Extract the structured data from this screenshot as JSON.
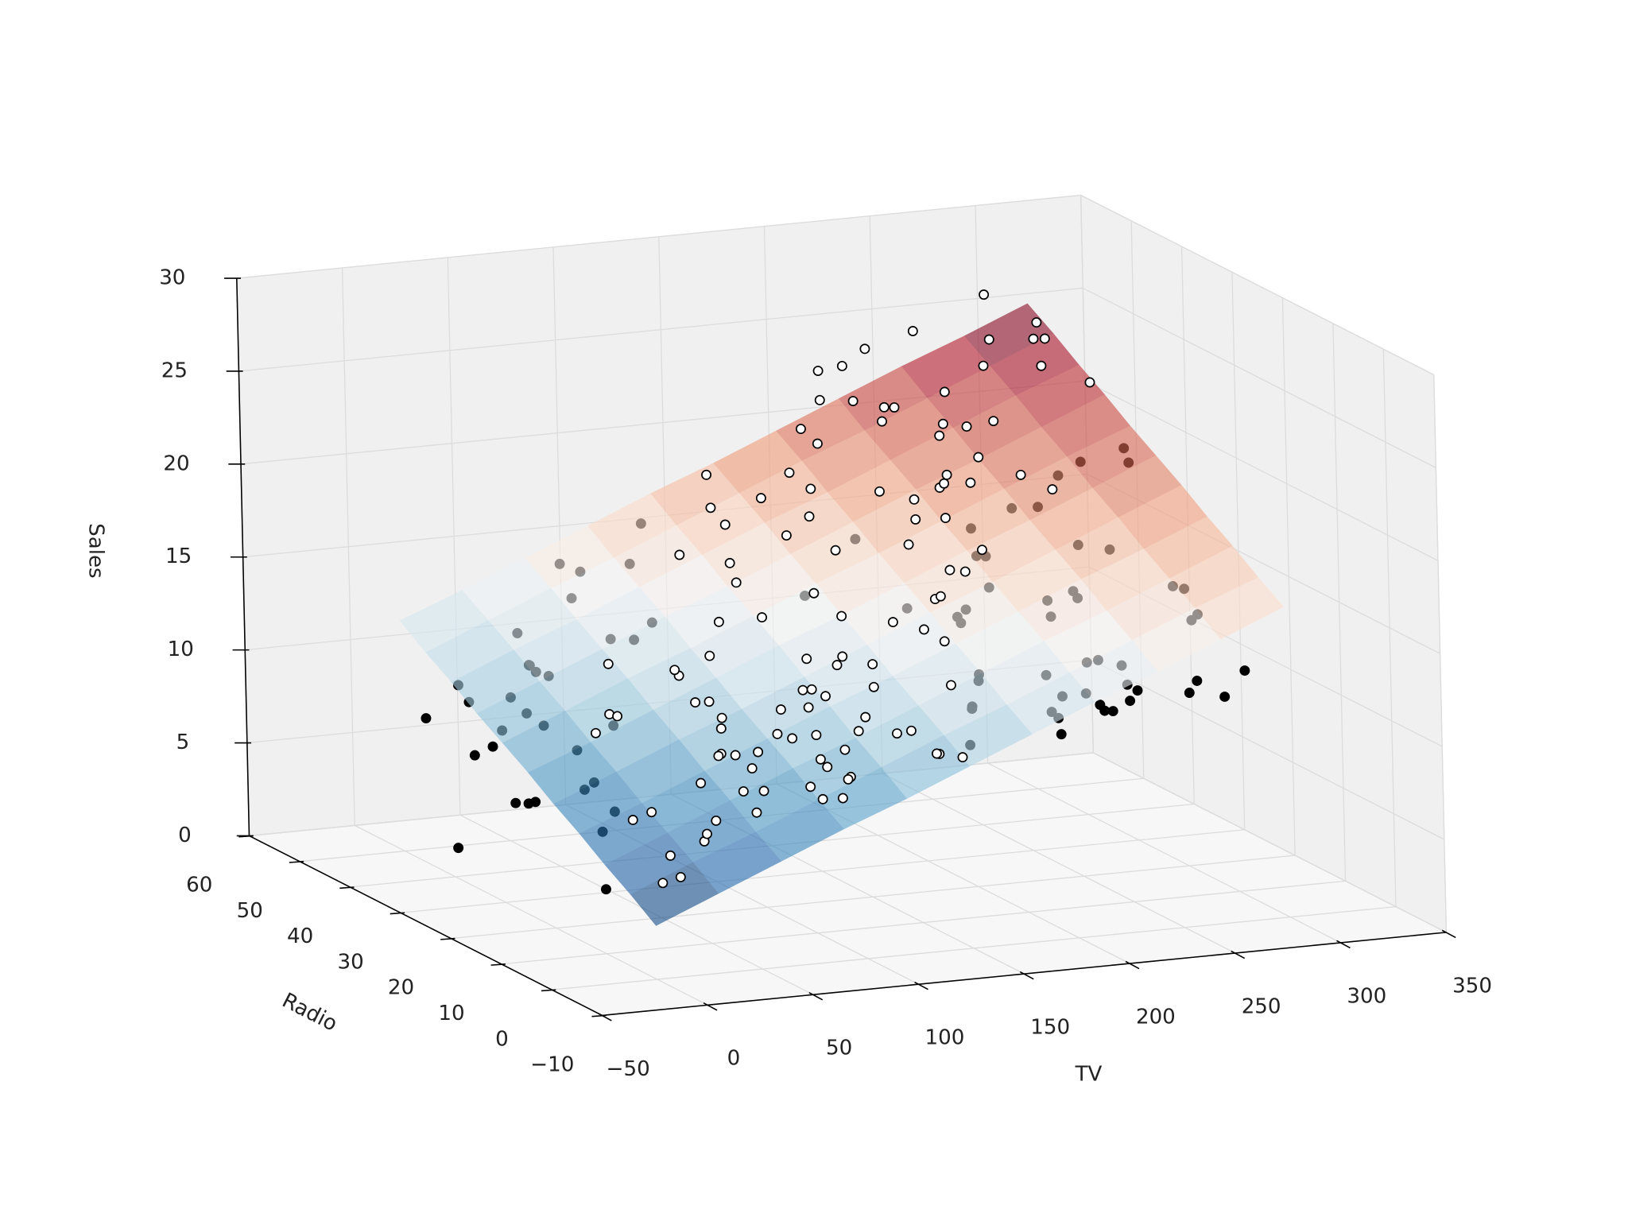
{
  "chart_data": {
    "type": "scatter3d",
    "x_label": "TV",
    "y_label": "Radio",
    "z_label": "Sales",
    "xlim": [
      -50,
      350
    ],
    "ylim": [
      -10,
      60
    ],
    "zlim": [
      0,
      30
    ],
    "xticks": [
      {
        "value": -50,
        "label": "−50"
      },
      0,
      50,
      100,
      150,
      200,
      250,
      300,
      350
    ],
    "yticks": [
      {
        "value": -10,
        "label": "−10"
      },
      0,
      10,
      20,
      30,
      40,
      50,
      60
    ],
    "zticks": [
      0,
      5,
      10,
      15,
      20,
      25,
      30
    ],
    "grid": true,
    "above_color": "#ffffff",
    "below_color": "#000000",
    "edge_color": "#000000",
    "x": [
      230.1,
      44.5,
      17.2,
      151.5,
      180.8,
      8.7,
      57.5,
      120.2,
      8.6,
      199.8,
      66.1,
      214.7,
      23.8,
      97.5,
      204.1,
      195.4,
      67.8,
      281.4,
      69.2,
      147.3,
      218.4,
      237.4,
      13.2,
      228.3,
      62.3,
      262.9,
      142.9,
      240.1,
      248.8,
      70.6,
      292.9,
      112.9,
      97.2,
      265.6,
      95.7,
      290.7,
      266.9,
      74.7,
      43.1,
      228,
      202.5,
      177,
      293.6,
      206.9,
      25.1,
      175.1,
      89.7,
      239.9,
      227.2,
      66.9,
      199.8,
      100.4,
      216.4,
      182.6,
      262.7,
      198.9,
      7.3,
      136.2,
      210.8,
      210.7,
      53.5,
      261.3,
      239.3,
      102.7,
      131.1,
      69,
      31.5,
      139.3,
      237.4,
      216.8,
      199.1,
      109.8,
      26.8,
      129.4,
      213.4,
      16.9,
      27.5,
      120.5,
      5.4,
      116,
      76.4,
      239.8,
      75.3,
      68.4,
      213.5,
      193.2,
      76.3,
      110.7,
      88.3,
      109.8,
      134.3,
      28.6,
      217.7,
      250.9,
      107.4,
      163.3,
      197.6,
      184.9,
      289.7,
      135.2,
      222.4,
      296.4,
      280.2,
      187.9,
      238.2,
      137.9,
      25,
      90.4,
      13.1,
      255.4,
      225.8,
      241.7,
      175.7,
      209.6,
      78.2,
      75.1,
      139.2,
      76.4,
      125.7,
      19.4,
      141.3,
      18.8,
      224,
      123.1,
      229.5,
      87.2,
      7.8,
      80.2,
      220.3,
      59.6,
      0.7,
      265.2,
      8.4,
      219.8,
      36.9,
      48.3,
      25.6,
      273.7,
      43,
      184.9,
      73.4,
      193.7,
      220.5,
      104.6,
      96.2,
      140.3,
      240.1,
      243.2,
      38,
      44.7,
      280.7,
      121,
      197.6,
      171.3,
      187.8,
      4.1,
      93.9,
      149.8,
      11.7,
      131.7,
      172.5,
      85.7,
      188.4,
      163.5,
      117.2,
      234.5,
      17.9,
      206.8,
      215.4,
      284.3,
      50,
      164.5,
      19.6,
      168.4,
      222.4,
      276.9,
      248.4,
      170.2,
      276.7,
      165.6,
      156.6,
      218.5,
      56.2,
      287.6,
      253.8,
      205,
      139.5,
      191.1,
      286,
      18.7,
      39.5,
      75.5,
      17.2,
      166.8,
      149.7,
      38.2,
      94.2,
      177,
      283.6,
      232.1
    ],
    "y": [
      37.8,
      39.3,
      45.9,
      41.3,
      10.8,
      48.9,
      32.8,
      19.6,
      2.1,
      2.6,
      5.8,
      24,
      35.1,
      7.6,
      32.9,
      47.7,
      36.6,
      39.6,
      20.5,
      23.9,
      27.7,
      5.1,
      15.9,
      16.9,
      12.6,
      3.5,
      29.3,
      16.7,
      27.1,
      16,
      28.3,
      17.4,
      1.5,
      20,
      1.4,
      4.1,
      43.8,
      49.4,
      26.7,
      37.7,
      22.3,
      33.4,
      27.7,
      8.4,
      25.7,
      22.5,
      9.9,
      41.5,
      15.8,
      11.7,
      3.1,
      9.6,
      41.7,
      46.2,
      28.8,
      49.4,
      28.1,
      19.2,
      49.6,
      29.5,
      2,
      42.7,
      15.5,
      29.6,
      42.8,
      9.3,
      24.6,
      14.5,
      27.5,
      43.9,
      30.6,
      14.3,
      33,
      5.7,
      24.6,
      43.7,
      1.6,
      28.5,
      29.9,
      7.7,
      26.7,
      4.1,
      20.3,
      44.5,
      43,
      18.4,
      27.5,
      40.6,
      25.5,
      47.8,
      4.9,
      1.5,
      33.5,
      36.5,
      14,
      31.6,
      3.5,
      21,
      42.3,
      41.7,
      4.3,
      36.3,
      10.1,
      17.2,
      34.3,
      46.4,
      11,
      0.3,
      0.4,
      26.9,
      8.2,
      38,
      15.4,
      20.6,
      46.8,
      35,
      14.3,
      0.8,
      36.9,
      16,
      26.8,
      21.7,
      2.4,
      34.6,
      32.3,
      11.8,
      38.9,
      0,
      49,
      12,
      39.6,
      2.9,
      27.2,
      33.5,
      38.6,
      47,
      39,
      28.9,
      25.9,
      43.9,
      17,
      35.4,
      33.2,
      5.7,
      14.8,
      1.9,
      7.3,
      49,
      40.3,
      25.8,
      13.9,
      8.4,
      23.3,
      39.7,
      21.1,
      11.6,
      43.5,
      1.3,
      36.9,
      18.4,
      18.1,
      35.8,
      18.1,
      36.8,
      14.7,
      3.4,
      37.6,
      5.2,
      23.6,
      10.6,
      11.6,
      20.9,
      20.1,
      7.1,
      3.4,
      48.9,
      30.2,
      7.8,
      2.3,
      10,
      2.6,
      5.4,
      5.7,
      43,
      21.3,
      45.1,
      2.1,
      28.7,
      13.9,
      12.1,
      41.1,
      10.8,
      4.1,
      42,
      35.6,
      3.7,
      4.9,
      9.3,
      42,
      8.6
    ],
    "z": [
      22.1,
      10.4,
      9.3,
      18.5,
      12.9,
      7.2,
      11.8,
      13.2,
      4.8,
      10.6,
      8.6,
      17.4,
      9.2,
      9.7,
      19,
      22.4,
      12.5,
      24.4,
      11.3,
      14.6,
      18,
      12.5,
      5.6,
      15.5,
      9.7,
      12,
      15,
      15.9,
      18.9,
      10.5,
      21.4,
      11.9,
      9.6,
      17.4,
      9.5,
      12.8,
      25.4,
      14.7,
      10.1,
      21.5,
      16.6,
      17.1,
      20.7,
      12.9,
      8.5,
      14.9,
      10.6,
      23.2,
      14.8,
      9.7,
      11.4,
      10.7,
      22.6,
      21.2,
      20.2,
      23.7,
      5.5,
      13.2,
      23.8,
      18.4,
      8.1,
      24.2,
      15.7,
      14,
      18,
      9.3,
      9.5,
      13.4,
      18.9,
      22.3,
      18.3,
      12.4,
      8.8,
      11,
      17,
      8.7,
      6.9,
      14.2,
      5.3,
      11,
      11.8,
      12.3,
      11.3,
      13.6,
      21.7,
      15.2,
      12,
      16,
      12.9,
      16.7,
      11.2,
      7.3,
      19.4,
      22.2,
      11.5,
      16.9,
      11.7,
      15.5,
      25.4,
      17.2,
      11.7,
      23.8,
      14.8,
      14.7,
      20.7,
      19.2,
      7.2,
      8.7,
      5.3,
      19.8,
      13.4,
      21.8,
      14.1,
      15.9,
      14.6,
      12.6,
      12.2,
      9.4,
      15.9,
      6.6,
      15.5,
      7,
      11.6,
      15.2,
      19.7,
      10.6,
      6.6,
      8.8,
      24.7,
      9.7,
      1.6,
      12.7,
      5.7,
      19.6,
      10.8,
      11.6,
      9.5,
      20.8,
      9.6,
      20.7,
      10.9,
      19.2,
      20.1,
      10.4,
      11.4,
      10.3,
      13.2,
      25.4,
      10.9,
      10.1,
      16.1,
      11.6,
      16.6,
      19,
      15.6,
      3.2,
      15.3,
      10.1,
      7.3,
      12.9,
      14.4,
      13.3,
      14.9,
      18,
      11.9,
      11.9,
      8,
      12.2,
      17.1,
      15,
      8.4,
      14.5,
      7.6,
      11.7,
      11.5,
      27,
      20.2,
      11.7,
      11.8,
      12.6,
      10.5,
      12.2,
      8.7,
      26.2,
      17.6,
      22.6,
      10.3,
      17.3,
      15.9,
      6.7,
      10.8,
      9.9,
      5.9,
      19.6,
      17.3,
      7.6,
      9.7,
      12.8,
      25.5,
      13.4
    ],
    "surface": {
      "cmap": "RdBu_r",
      "alpha": 0.6,
      "x": [
        0,
        30,
        60,
        90,
        120,
        150,
        180,
        210,
        240,
        270,
        300
      ],
      "y": [
        0,
        5,
        10,
        15,
        20,
        25,
        30,
        35,
        40,
        45,
        50
      ],
      "z": [
        [
          2.9,
          4.3,
          5.7,
          7.1,
          8.4,
          9.8,
          11.2,
          12.6,
          13.9,
          15.3,
          16.7
        ],
        [
          3.9,
          5.3,
          6.6,
          8.0,
          9.4,
          10.8,
          12.1,
          13.5,
          14.9,
          16.3,
          17.6
        ],
        [
          4.8,
          6.2,
          7.6,
          9.0,
          10.3,
          11.7,
          13.1,
          14.5,
          15.8,
          17.2,
          18.6
        ],
        [
          5.8,
          7.1,
          8.5,
          9.9,
          11.3,
          12.6,
          14.0,
          15.4,
          16.8,
          18.1,
          19.5
        ],
        [
          6.7,
          8.1,
          9.5,
          10.8,
          12.2,
          13.6,
          15.0,
          16.3,
          17.7,
          19.1,
          20.5
        ],
        [
          7.7,
          9.0,
          10.4,
          11.8,
          13.2,
          14.5,
          15.9,
          17.3,
          18.6,
          20.0,
          21.4
        ],
        [
          8.6,
          10.0,
          11.4,
          12.7,
          14.1,
          15.5,
          16.8,
          18.2,
          19.6,
          21.0,
          22.3
        ],
        [
          9.5,
          10.9,
          12.3,
          13.7,
          15.0,
          16.4,
          17.8,
          19.2,
          20.5,
          21.9,
          23.3
        ],
        [
          10.5,
          11.9,
          13.2,
          14.6,
          16.0,
          17.4,
          18.7,
          20.1,
          21.5,
          22.9,
          24.2
        ],
        [
          11.4,
          12.8,
          14.2,
          15.5,
          16.9,
          18.3,
          19.7,
          21.0,
          22.4,
          23.8,
          25.2
        ],
        [
          12.4,
          13.7,
          15.1,
          16.5,
          17.9,
          19.2,
          20.6,
          22.0,
          23.4,
          24.7,
          26.1
        ]
      ]
    }
  }
}
